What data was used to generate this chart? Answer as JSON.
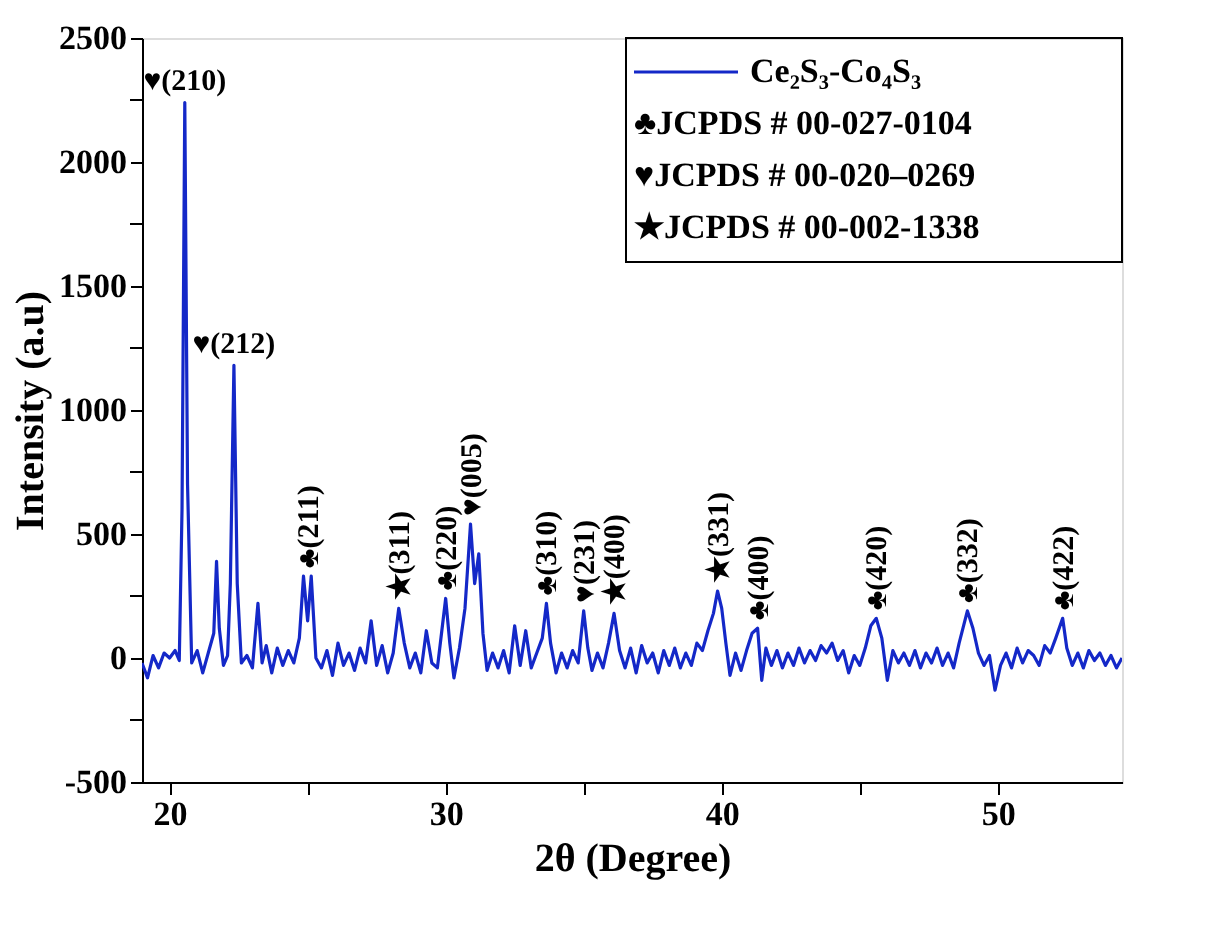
{
  "chart_data": {
    "type": "line",
    "xlabel": "2θ (Degree)",
    "ylabel": "Intensity (a.u)",
    "x": [
      19.0,
      19.2,
      19.4,
      19.6,
      19.8,
      20.0,
      20.2,
      20.35,
      20.45,
      20.55,
      20.65,
      20.8,
      21.0,
      21.2,
      21.4,
      21.6,
      21.7,
      21.8,
      21.95,
      22.1,
      22.2,
      22.33,
      22.45,
      22.6,
      22.8,
      23.0,
      23.2,
      23.35,
      23.5,
      23.7,
      23.9,
      24.1,
      24.3,
      24.5,
      24.7,
      24.85,
      25.0,
      25.13,
      25.3,
      25.5,
      25.7,
      25.9,
      26.1,
      26.3,
      26.5,
      26.7,
      26.9,
      27.1,
      27.3,
      27.5,
      27.7,
      27.9,
      28.1,
      28.3,
      28.5,
      28.7,
      28.9,
      29.1,
      29.3,
      29.5,
      29.7,
      29.85,
      30.0,
      30.15,
      30.3,
      30.5,
      30.7,
      30.9,
      31.05,
      31.2,
      31.35,
      31.5,
      31.7,
      31.9,
      32.1,
      32.3,
      32.5,
      32.7,
      32.9,
      33.1,
      33.3,
      33.5,
      33.65,
      33.8,
      34.0,
      34.2,
      34.4,
      34.6,
      34.8,
      35.0,
      35.15,
      35.3,
      35.5,
      35.7,
      35.9,
      36.1,
      36.3,
      36.5,
      36.7,
      36.9,
      37.1,
      37.3,
      37.5,
      37.7,
      37.9,
      38.1,
      38.3,
      38.5,
      38.7,
      38.9,
      39.1,
      39.3,
      39.5,
      39.7,
      39.85,
      40.0,
      40.15,
      40.3,
      40.5,
      40.7,
      40.9,
      41.1,
      41.3,
      41.45,
      41.6,
      41.8,
      42.0,
      42.2,
      42.4,
      42.6,
      42.8,
      43.0,
      43.2,
      43.4,
      43.6,
      43.8,
      44.0,
      44.2,
      44.4,
      44.6,
      44.8,
      45.0,
      45.2,
      45.4,
      45.6,
      45.8,
      46.0,
      46.2,
      46.4,
      46.6,
      46.8,
      47.0,
      47.2,
      47.4,
      47.6,
      47.8,
      48.0,
      48.2,
      48.4,
      48.6,
      48.9,
      49.1,
      49.3,
      49.5,
      49.7,
      49.9,
      50.1,
      50.3,
      50.5,
      50.7,
      50.9,
      51.1,
      51.3,
      51.5,
      51.7,
      51.9,
      52.1,
      52.35,
      52.5,
      52.7,
      52.9,
      53.1,
      53.3,
      53.5,
      53.7,
      53.9,
      54.1,
      54.3,
      54.5
    ],
    "series": [
      {
        "name": "Ce₂S₃-Co₄S₃",
        "color": "#1428c8",
        "values": [
          -20,
          -80,
          10,
          -40,
          20,
          0,
          30,
          -10,
          600,
          2240,
          700,
          -20,
          30,
          -60,
          20,
          100,
          390,
          120,
          -30,
          10,
          300,
          1180,
          300,
          -20,
          10,
          -40,
          220,
          -20,
          50,
          -60,
          40,
          -30,
          30,
          -20,
          80,
          330,
          150,
          330,
          0,
          -40,
          30,
          -70,
          60,
          -30,
          20,
          -50,
          40,
          -20,
          150,
          -30,
          50,
          -60,
          20,
          200,
          60,
          -40,
          20,
          -60,
          110,
          -20,
          -40,
          100,
          240,
          60,
          -80,
          40,
          200,
          540,
          300,
          420,
          100,
          -50,
          20,
          -40,
          30,
          -60,
          130,
          -30,
          110,
          -40,
          20,
          80,
          220,
          60,
          -60,
          20,
          -40,
          30,
          -20,
          190,
          40,
          -50,
          20,
          -40,
          60,
          180,
          30,
          -40,
          40,
          -60,
          50,
          -20,
          20,
          -60,
          30,
          -30,
          40,
          -40,
          20,
          -30,
          60,
          30,
          110,
          180,
          270,
          200,
          60,
          -70,
          20,
          -50,
          30,
          100,
          120,
          -90,
          40,
          -30,
          30,
          -40,
          20,
          -30,
          40,
          -20,
          30,
          -10,
          50,
          20,
          60,
          -10,
          30,
          -60,
          10,
          -30,
          40,
          130,
          160,
          80,
          -90,
          30,
          -20,
          20,
          -30,
          30,
          -40,
          20,
          -20,
          40,
          -30,
          20,
          -40,
          60,
          190,
          120,
          20,
          -30,
          10,
          -130,
          -30,
          20,
          -40,
          40,
          -20,
          30,
          10,
          -30,
          50,
          20,
          80,
          160,
          40,
          -30,
          20,
          -40,
          30,
          -10,
          20,
          -30,
          10,
          -40,
          0
        ]
      }
    ],
    "xlim": [
      19,
      54.5
    ],
    "xticks": [
      20,
      {
        "value": 25,
        "label": null
      },
      30,
      {
        "value": 35,
        "label": null
      },
      40,
      {
        "value": 45,
        "label": null
      },
      50
    ],
    "ylim": [
      -500,
      2500
    ],
    "yticks": [
      -500,
      {
        "value": -250,
        "label": null
      },
      0,
      {
        "value": 250,
        "label": null
      },
      500,
      {
        "value": 750,
        "label": null
      },
      1000,
      {
        "value": 1250,
        "label": null
      },
      1500,
      {
        "value": 1750,
        "label": null
      },
      2000,
      {
        "value": 2250,
        "label": null
      },
      2500
    ],
    "grid": false,
    "legend": "top right",
    "marker": "none",
    "line_style": "solid",
    "annotations": [
      {
        "text": "♥(210)",
        "x": 20.55,
        "y": 2240
      },
      {
        "text": "♥(212)",
        "x": 22.33,
        "y": 1180
      },
      {
        "text": "♣(211)",
        "x": 25.0,
        "y": 330
      },
      {
        "text": "★(311)",
        "x": 28.3,
        "y": 200
      },
      {
        "text": "♣(220)",
        "x": 30.0,
        "y": 240
      },
      {
        "text": "♥(005)",
        "x": 30.9,
        "y": 540
      },
      {
        "text": "♣(310)",
        "x": 33.65,
        "y": 220
      },
      {
        "text": "♥(231)",
        "x": 35.0,
        "y": 190
      },
      {
        "text": "★(400)",
        "x": 36.1,
        "y": 180
      },
      {
        "text": "★(331)",
        "x": 39.85,
        "y": 270
      },
      {
        "text": "♣(400)",
        "x": 41.3,
        "y": 120
      },
      {
        "text": "♣(420)",
        "x": 45.6,
        "y": 160
      },
      {
        "text": "♣(332)",
        "x": 48.9,
        "y": 190
      },
      {
        "text": "♣(422)",
        "x": 52.35,
        "y": 160
      },
      "♣JCPDS # 00-027-0104",
      "♥JCPDS # 00-020–0269",
      "★JCPDS # 00-002-1338"
    ]
  }
}
